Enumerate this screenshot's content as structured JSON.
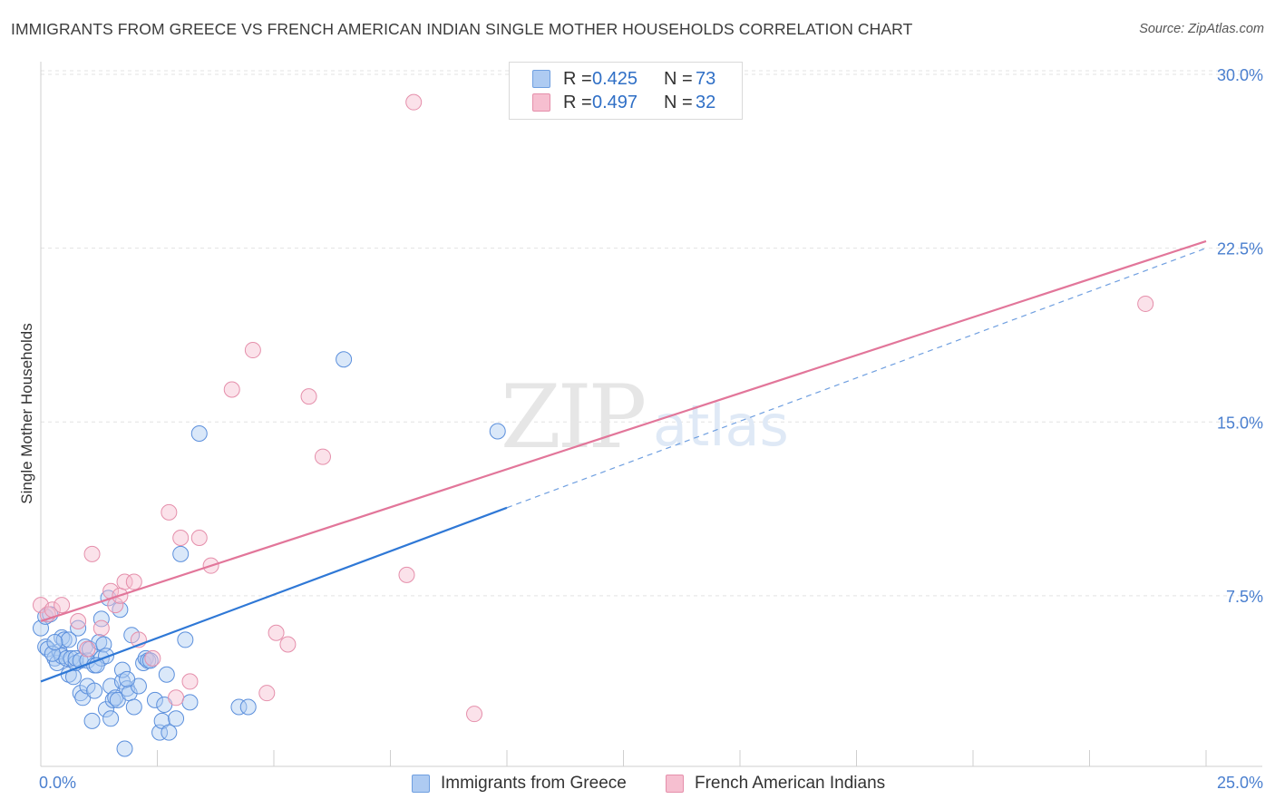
{
  "title": "IMMIGRANTS FROM GREECE VS FRENCH AMERICAN INDIAN SINGLE MOTHER HOUSEHOLDS CORRELATION CHART",
  "source": "Source: ZipAtlas.com",
  "watermark": {
    "zip": "ZIP",
    "atlas": "atlas"
  },
  "colors": {
    "blue": "#2f78d6",
    "pink": "#e2769a",
    "blue_fill": "#aecbf2",
    "pink_fill": "#f6bfd0",
    "axis_text": "#4a7fcf"
  },
  "legend": {
    "series1": {
      "r_label": "R = ",
      "r_value": "0.425",
      "n_label": "N = ",
      "n_value": "73"
    },
    "series2": {
      "r_label": "R = ",
      "r_value": "0.497",
      "n_label": "N = ",
      "n_value": "32"
    }
  },
  "chart_data": {
    "type": "scatter",
    "title": "IMMIGRANTS FROM GREECE VS FRENCH AMERICAN INDIAN SINGLE MOTHER HOUSEHOLDS CORRELATION CHART",
    "xlabel": "",
    "ylabel": "Single Mother Households",
    "xlim": [
      0,
      25
    ],
    "ylim": [
      0,
      31
    ],
    "x_tick_labels": [
      "0.0%",
      "25.0%"
    ],
    "y_ticks": [
      7.5,
      15.0,
      22.5,
      30.0
    ],
    "y_tick_labels": [
      "7.5%",
      "15.0%",
      "22.5%",
      "30.0%"
    ],
    "grid": true,
    "legend_position": "top-center",
    "series": [
      {
        "name": "Immigrants from Greece",
        "color": "#2f78d6",
        "fill": "#aecbf2",
        "trend": {
          "x0": 0,
          "y0": 3.8,
          "x1": 10,
          "y1": 11.3,
          "dash_to_x": 25,
          "dash_to_y": 22.5
        },
        "points": [
          [
            0.0,
            6.1
          ],
          [
            0.1,
            6.6
          ],
          [
            0.2,
            6.7
          ],
          [
            0.1,
            5.3
          ],
          [
            0.15,
            5.2
          ],
          [
            0.3,
            4.8
          ],
          [
            0.35,
            4.6
          ],
          [
            0.4,
            5.1
          ],
          [
            0.45,
            5.7
          ],
          [
            0.5,
            5.6
          ],
          [
            0.45,
            4.9
          ],
          [
            0.55,
            4.8
          ],
          [
            0.6,
            4.1
          ],
          [
            0.65,
            4.8
          ],
          [
            0.7,
            4.0
          ],
          [
            0.75,
            4.6
          ],
          [
            0.75,
            4.8
          ],
          [
            0.8,
            6.1
          ],
          [
            0.85,
            4.7
          ],
          [
            0.85,
            3.3
          ],
          [
            0.9,
            3.1
          ],
          [
            0.95,
            5.3
          ],
          [
            1.0,
            4.7
          ],
          [
            1.0,
            3.6
          ],
          [
            1.05,
            5.2
          ],
          [
            1.1,
            2.1
          ],
          [
            1.15,
            4.5
          ],
          [
            1.15,
            3.4
          ],
          [
            1.25,
            5.5
          ],
          [
            1.3,
            4.8
          ],
          [
            1.3,
            6.5
          ],
          [
            1.35,
            5.4
          ],
          [
            1.4,
            4.9
          ],
          [
            1.4,
            2.6
          ],
          [
            1.45,
            7.4
          ],
          [
            1.5,
            3.6
          ],
          [
            1.5,
            2.2
          ],
          [
            1.55,
            3.0
          ],
          [
            1.6,
            3.1
          ],
          [
            1.65,
            3.0
          ],
          [
            1.7,
            6.9
          ],
          [
            1.75,
            3.8
          ],
          [
            1.75,
            4.3
          ],
          [
            1.8,
            0.9
          ],
          [
            1.85,
            3.5
          ],
          [
            1.9,
            3.3
          ],
          [
            1.95,
            5.8
          ],
          [
            2.0,
            2.7
          ],
          [
            2.1,
            3.6
          ],
          [
            2.2,
            4.6
          ],
          [
            2.25,
            4.8
          ],
          [
            2.3,
            4.7
          ],
          [
            2.45,
            3.0
          ],
          [
            2.55,
            1.6
          ],
          [
            2.6,
            2.1
          ],
          [
            2.65,
            2.8
          ],
          [
            2.7,
            4.1
          ],
          [
            2.75,
            1.6
          ],
          [
            2.9,
            2.2
          ],
          [
            3.0,
            9.3
          ],
          [
            3.1,
            5.6
          ],
          [
            3.2,
            2.9
          ],
          [
            3.4,
            14.5
          ],
          [
            4.25,
            2.7
          ],
          [
            4.45,
            2.7
          ],
          [
            6.5,
            17.7
          ],
          [
            9.8,
            14.6
          ],
          [
            0.25,
            5.0
          ],
          [
            0.6,
            5.6
          ],
          [
            1.2,
            4.5
          ],
          [
            0.3,
            5.5
          ],
          [
            2.35,
            4.7
          ],
          [
            1.85,
            3.9
          ]
        ]
      },
      {
        "name": "French American Indians",
        "color": "#e2769a",
        "fill": "#f6bfd0",
        "trend": {
          "x0": 0,
          "y0": 6.4,
          "x1": 25,
          "y1": 22.8
        },
        "points": [
          [
            0.0,
            7.1
          ],
          [
            0.15,
            6.7
          ],
          [
            0.25,
            6.9
          ],
          [
            0.45,
            7.1
          ],
          [
            0.8,
            6.4
          ],
          [
            1.1,
            9.3
          ],
          [
            1.3,
            6.1
          ],
          [
            1.5,
            7.7
          ],
          [
            1.6,
            7.1
          ],
          [
            1.7,
            7.5
          ],
          [
            1.8,
            8.1
          ],
          [
            2.0,
            8.1
          ],
          [
            2.1,
            5.6
          ],
          [
            2.4,
            4.8
          ],
          [
            2.75,
            11.1
          ],
          [
            3.0,
            10.0
          ],
          [
            3.2,
            3.8
          ],
          [
            3.4,
            10.0
          ],
          [
            3.65,
            8.8
          ],
          [
            4.1,
            16.4
          ],
          [
            4.55,
            18.1
          ],
          [
            4.85,
            3.3
          ],
          [
            5.05,
            5.9
          ],
          [
            5.3,
            5.4
          ],
          [
            5.75,
            16.1
          ],
          [
            6.05,
            13.5
          ],
          [
            7.85,
            8.4
          ],
          [
            8.0,
            28.8
          ],
          [
            9.3,
            2.4
          ],
          [
            23.7,
            20.1
          ],
          [
            1.0,
            5.2
          ],
          [
            2.9,
            3.1
          ]
        ]
      }
    ]
  },
  "bottom_legend": {
    "item1": "Immigrants from Greece",
    "item2": "French American Indians"
  }
}
